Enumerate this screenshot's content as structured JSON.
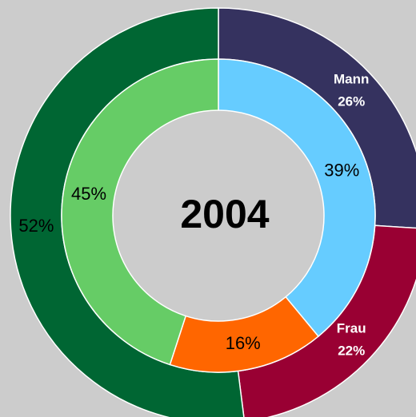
{
  "chart_data": {
    "type": "donut",
    "center_label": "2004",
    "series": [
      {
        "categories": [
          "Mann",
          "Frau",
          null
        ],
        "values": [
          26,
          22,
          52
        ],
        "value_labels": [
          "26%",
          "22%",
          "52%"
        ],
        "colors": [
          "#35325f",
          "#990033",
          "#006633"
        ]
      },
      {
        "values": [
          39,
          16,
          45
        ],
        "value_labels": [
          "39%",
          "16%",
          "45%"
        ],
        "colors": [
          "#66ccff",
          "#ff6600",
          "#66cc66"
        ]
      }
    ]
  }
}
